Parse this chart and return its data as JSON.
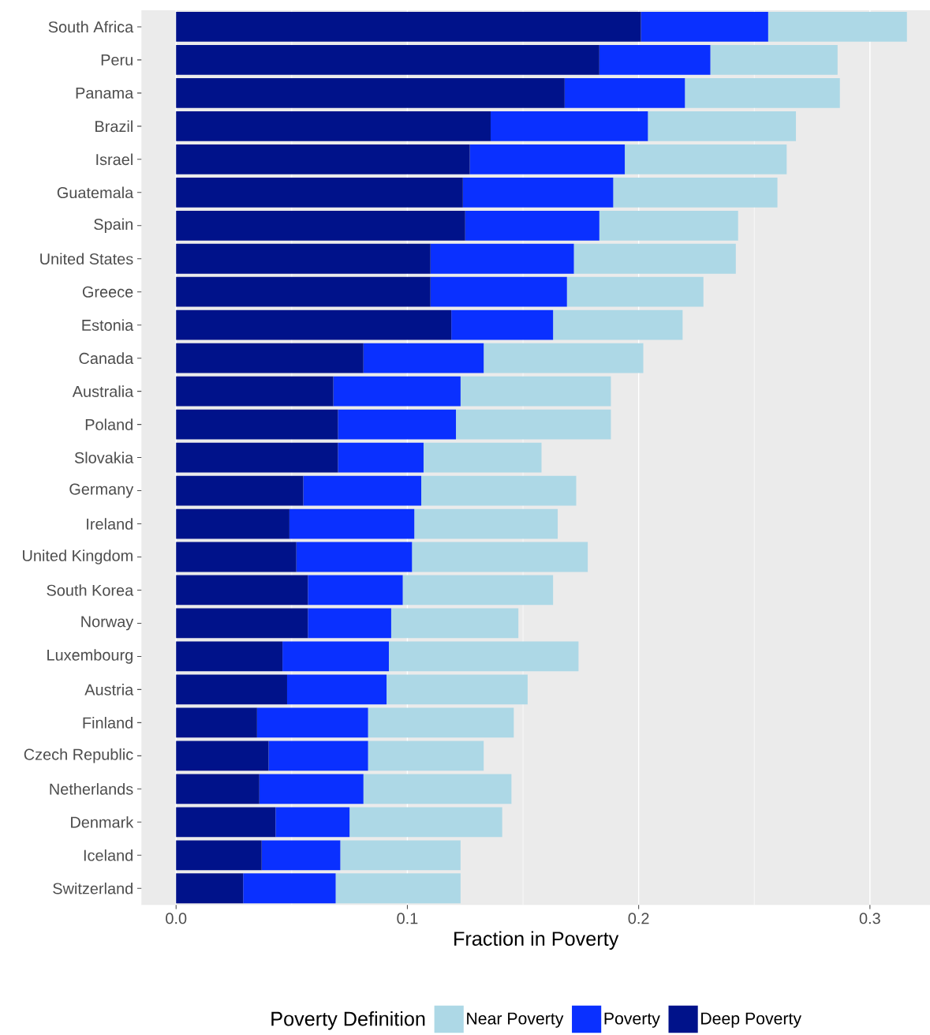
{
  "chart_data": {
    "type": "bar",
    "orientation": "horizontal",
    "stacked": true,
    "xlabel": "Fraction in Poverty",
    "legend_title": "Poverty Definition",
    "legend": "bottom",
    "grid": "x",
    "categories": [
      "South Africa",
      "Peru",
      "Panama",
      "Brazil",
      "Israel",
      "Guatemala",
      "Spain",
      "United States",
      "Greece",
      "Estonia",
      "Canada",
      "Australia",
      "Poland",
      "Slovakia",
      "Germany",
      "Ireland",
      "United Kingdom",
      "South Korea",
      "Norway",
      "Luxembourg",
      "Austria",
      "Finland",
      "Czech Republic",
      "Netherlands",
      "Denmark",
      "Iceland",
      "Switzerland"
    ],
    "xlim": [
      -0.015,
      0.326
    ],
    "xticks": [
      {
        "value": 0,
        "label": "0.0"
      },
      0.1,
      0.2,
      0.3
    ],
    "series": [
      {
        "name": "Deep Poverty",
        "color": "#00128a",
        "values": [
          0.201,
          0.183,
          0.168,
          0.136,
          0.127,
          0.124,
          0.125,
          0.11,
          0.11,
          0.119,
          0.081,
          0.068,
          0.07,
          0.07,
          0.055,
          0.049,
          0.052,
          0.057,
          0.057,
          0.046,
          0.048,
          0.035,
          0.04,
          0.036,
          0.043,
          0.037,
          0.029
        ]
      },
      {
        "name": "Poverty",
        "color": "#0a30ff",
        "values": [
          0.055,
          0.048,
          0.052,
          0.068,
          0.067,
          0.065,
          0.058,
          0.062,
          0.059,
          0.044,
          0.052,
          0.055,
          0.051,
          0.037,
          0.051,
          0.054,
          0.05,
          0.041,
          0.036,
          0.046,
          0.043,
          0.048,
          0.043,
          0.045,
          0.032,
          0.034,
          0.04
        ]
      },
      {
        "name": "Near Poverty",
        "color": "#add8e6",
        "values": [
          0.06,
          0.055,
          0.067,
          0.064,
          0.07,
          0.071,
          0.06,
          0.07,
          0.059,
          0.056,
          0.069,
          0.065,
          0.067,
          0.051,
          0.067,
          0.062,
          0.076,
          0.065,
          0.055,
          0.082,
          0.061,
          0.063,
          0.05,
          0.064,
          0.066,
          0.052,
          0.054
        ]
      }
    ]
  }
}
